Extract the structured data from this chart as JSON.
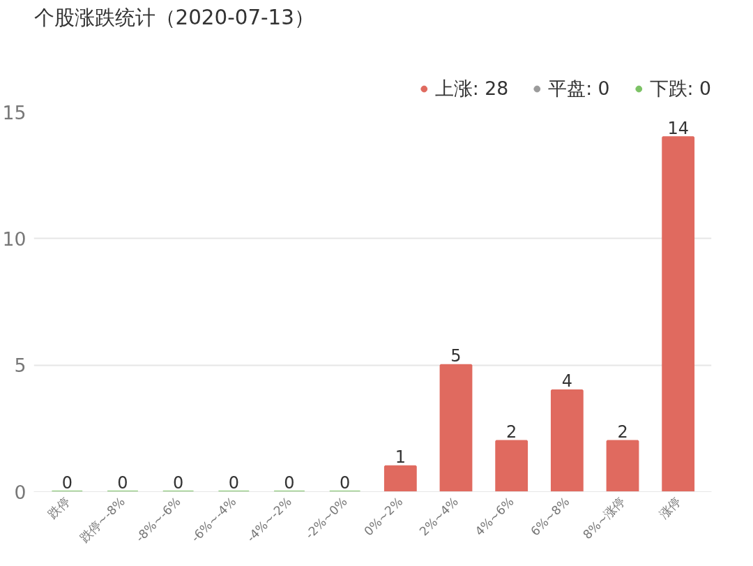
{
  "chart_data": {
    "type": "bar",
    "title": "个股涨跌统计（2020-07-13）",
    "categories": [
      "跌停",
      "跌停~-8%",
      "-8%~-6%",
      "-6%~-4%",
      "-4%~-2%",
      "-2%~0%",
      "0%~2%",
      "2%~4%",
      "4%~6%",
      "6%~8%",
      "8%~涨停",
      "涨停"
    ],
    "series": [
      {
        "name": "上涨: 28",
        "color": "#e06a5f",
        "values": [
          null,
          null,
          null,
          null,
          null,
          null,
          1,
          5,
          2,
          4,
          2,
          14
        ]
      },
      {
        "name": "平盘: 0",
        "color": "#9b9b9b",
        "values": [
          null,
          null,
          null,
          null,
          null,
          null,
          null,
          null,
          null,
          null,
          null,
          null
        ]
      },
      {
        "name": "下跌: 0",
        "color": "#7cc265",
        "values": [
          0,
          0,
          0,
          0,
          0,
          0,
          null,
          null,
          null,
          null,
          null,
          null
        ]
      }
    ],
    "ylim": [
      0,
      15
    ],
    "yticks": [
      0,
      5,
      10,
      15
    ],
    "grid": "y",
    "legend": "top right",
    "data_labels": true
  }
}
